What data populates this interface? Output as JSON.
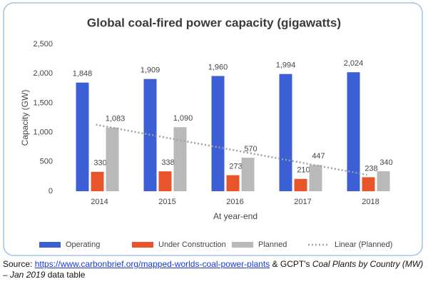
{
  "chart_data": {
    "type": "bar",
    "title": "Global coal-fired power capacity (gigawatts)",
    "y_label": "Capacity (GW)",
    "x_label": "At year-end",
    "categories": [
      "2014",
      "2015",
      "2016",
      "2017",
      "2018"
    ],
    "series": [
      {
        "name": "Operating",
        "color": "#3d5fd6",
        "values": [
          1848,
          1909,
          1960,
          1994,
          2024
        ],
        "value_labels": [
          "1,848",
          "1,909",
          "1,960",
          "1,994",
          "2,024"
        ]
      },
      {
        "name": "Under Construction",
        "color": "#e8552a",
        "values": [
          330,
          338,
          273,
          210,
          238
        ]
      },
      {
        "name": "Planned",
        "color": "#b9b9b9",
        "values": [
          1083,
          1090,
          570,
          447,
          340
        ],
        "value_labels": [
          "1,083",
          "1,090",
          "570",
          "447",
          "340"
        ]
      }
    ],
    "trend": {
      "name": "Linear (Planned)",
      "color": "#a0a0a0",
      "values": [
        1131.8,
        918.9,
        706,
        493.1,
        280.2
      ]
    },
    "ylim": [
      0,
      2500
    ],
    "yticks": [
      0,
      500,
      {
        "value": 1000,
        "label": "1,000"
      },
      {
        "value": 1500,
        "label": "1,500"
      },
      {
        "value": 2000,
        "label": "2,000"
      },
      {
        "value": 2500,
        "label": "2,500"
      }
    ],
    "grid": false,
    "legend": "bottom"
  },
  "source": {
    "label": "Source:",
    "link": "https://www.carbonbrief.org/mapped-worlds-coal-power-plants",
    "middle": "& GCPT's",
    "italic": "Coal Plants by Country (MW) – Jan 2019",
    "end": "data table"
  }
}
